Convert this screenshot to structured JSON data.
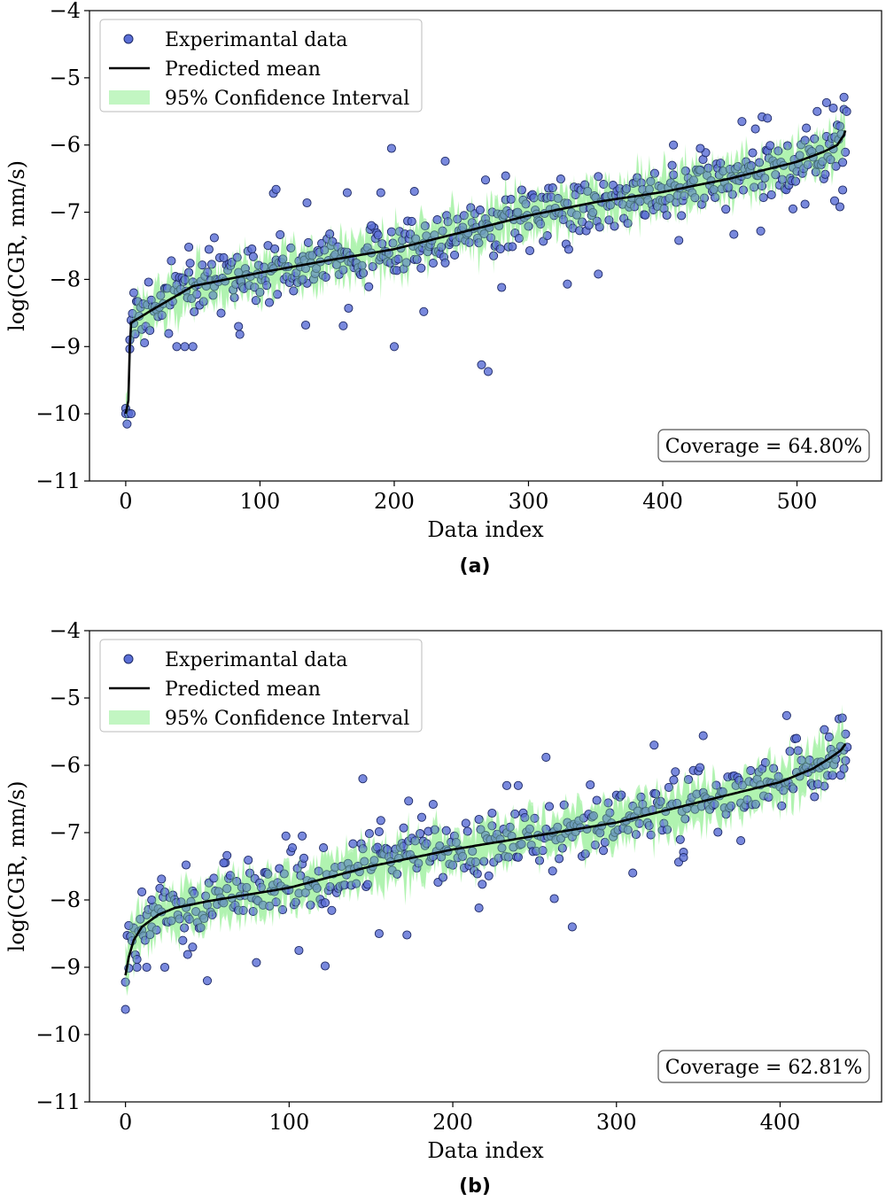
{
  "chart_data": [
    {
      "type": "scatter",
      "panel_label": "(a)",
      "xlabel": "Data index",
      "ylabel": "log(CGR, mm/s)",
      "xlim": [
        -27,
        563
      ],
      "ylim": [
        -11,
        -4
      ],
      "xticks": [
        0,
        100,
        200,
        300,
        400,
        500
      ],
      "xtick_labels": [
        "0",
        "100",
        "200",
        "300",
        "400",
        "500"
      ],
      "yticks": [
        -11,
        -10,
        -9,
        -8,
        -7,
        -6,
        -5,
        -4
      ],
      "ytick_labels": [
        "−11",
        "−10",
        "−9",
        "−8",
        "−7",
        "−6",
        "−5",
        "−4"
      ],
      "grid": false,
      "legend_position": "upper-left",
      "legend": [
        "Experimantal data",
        "Predicted mean",
        "95% Confidence Interval"
      ],
      "annotation": "Coverage = 64.80%",
      "n_points": 537,
      "mean_curve": {
        "x": [
          0,
          2,
          3,
          4,
          6,
          20,
          50,
          100,
          150,
          200,
          250,
          300,
          350,
          400,
          450,
          500,
          520,
          530,
          535,
          537
        ],
        "y": [
          -10.0,
          -9.8,
          -9.0,
          -8.65,
          -8.62,
          -8.45,
          -8.1,
          -7.9,
          -7.72,
          -7.55,
          -7.3,
          -7.05,
          -6.85,
          -6.7,
          -6.5,
          -6.25,
          -6.1,
          -6.0,
          -5.85,
          -5.72
        ]
      },
      "ci_halfwidth": 0.25,
      "ci_lower_min": -10.2,
      "scatter_sigma": 0.22,
      "outliers": [
        {
          "x": 0,
          "y": -10.0
        },
        {
          "x": 2,
          "y": -10.0
        },
        {
          "x": 4,
          "y": -10.0
        },
        {
          "x": 3,
          "y": -8.9
        },
        {
          "x": 6,
          "y": -8.2
        },
        {
          "x": 38,
          "y": -9.0
        },
        {
          "x": 44,
          "y": -9.0
        },
        {
          "x": 50,
          "y": -9.0
        },
        {
          "x": 47,
          "y": -7.52
        },
        {
          "x": 66,
          "y": -7.38
        },
        {
          "x": 85,
          "y": -8.82
        },
        {
          "x": 84,
          "y": -8.7
        },
        {
          "x": 110,
          "y": -6.72
        },
        {
          "x": 112,
          "y": -6.66
        },
        {
          "x": 132,
          "y": -8.0
        },
        {
          "x": 134,
          "y": -8.68
        },
        {
          "x": 135,
          "y": -6.86
        },
        {
          "x": 162,
          "y": -8.69
        },
        {
          "x": 165,
          "y": -6.71
        },
        {
          "x": 166,
          "y": -8.43
        },
        {
          "x": 183,
          "y": -7.2
        },
        {
          "x": 190,
          "y": -6.71
        },
        {
          "x": 198,
          "y": -6.05
        },
        {
          "x": 200,
          "y": -9.0
        },
        {
          "x": 215,
          "y": -6.69
        },
        {
          "x": 222,
          "y": -8.48
        },
        {
          "x": 238,
          "y": -6.24
        },
        {
          "x": 265,
          "y": -9.27
        },
        {
          "x": 270,
          "y": -9.37
        },
        {
          "x": 268,
          "y": -6.52
        },
        {
          "x": 280,
          "y": -8.12
        },
        {
          "x": 283,
          "y": -6.46
        },
        {
          "x": 314,
          "y": -7.35
        },
        {
          "x": 329,
          "y": -8.07
        },
        {
          "x": 352,
          "y": -7.92
        },
        {
          "x": 408,
          "y": -6.0
        },
        {
          "x": 412,
          "y": -7.42
        },
        {
          "x": 428,
          "y": -6.05
        },
        {
          "x": 453,
          "y": -7.33
        },
        {
          "x": 459,
          "y": -5.65
        },
        {
          "x": 474,
          "y": -5.58
        },
        {
          "x": 478,
          "y": -5.6
        },
        {
          "x": 473,
          "y": -7.28
        },
        {
          "x": 497,
          "y": -6.95
        },
        {
          "x": 506,
          "y": -6.88
        },
        {
          "x": 515,
          "y": -5.5
        },
        {
          "x": 522,
          "y": -5.37
        },
        {
          "x": 527,
          "y": -5.45
        },
        {
          "x": 532,
          "y": -6.92
        },
        {
          "x": 534,
          "y": -6.67
        },
        {
          "x": 535,
          "y": -5.47
        },
        {
          "x": 537,
          "y": -5.5
        },
        {
          "x": 528,
          "y": -6.83
        }
      ],
      "colors": {
        "points": "#5b6fd6",
        "points_edge": "#1e2a66",
        "ci": "#90ee90",
        "mean": "#000000"
      }
    },
    {
      "type": "scatter",
      "panel_label": "(b)",
      "xlabel": "Data index",
      "ylabel": "log(CGR, mm/s)",
      "xlim": [
        -22,
        462
      ],
      "ylim": [
        -11,
        -4
      ],
      "xticks": [
        0,
        100,
        200,
        300,
        400
      ],
      "xtick_labels": [
        "0",
        "100",
        "200",
        "300",
        "400"
      ],
      "yticks": [
        -11,
        -10,
        -9,
        -8,
        -7,
        -6,
        -5,
        -4
      ],
      "ytick_labels": [
        "−11",
        "−10",
        "−9",
        "−8",
        "−7",
        "−6",
        "−5",
        "−4"
      ],
      "grid": false,
      "legend_position": "upper-left",
      "legend": [
        "Experimantal data",
        "Predicted mean",
        "95% Confidence Interval"
      ],
      "annotation": "Coverage = 62.81%",
      "n_points": 441,
      "mean_curve": {
        "x": [
          0,
          2,
          5,
          10,
          20,
          30,
          50,
          100,
          150,
          200,
          250,
          300,
          350,
          400,
          420,
          430,
          437,
          441
        ],
        "y": [
          -9.12,
          -8.85,
          -8.6,
          -8.4,
          -8.22,
          -8.12,
          -8.02,
          -7.82,
          -7.5,
          -7.25,
          -7.05,
          -6.85,
          -6.55,
          -6.25,
          -6.05,
          -5.9,
          -5.78,
          -5.65
        ]
      },
      "ci_halfwidth": 0.26,
      "ci_lower_min": -9.85,
      "scatter_sigma": 0.24,
      "outliers": [
        {
          "x": 0,
          "y": -9.22
        },
        {
          "x": 2,
          "y": -8.38
        },
        {
          "x": 7,
          "y": -9.0
        },
        {
          "x": 10,
          "y": -7.88
        },
        {
          "x": 13,
          "y": -9.0
        },
        {
          "x": 16,
          "y": -8.0
        },
        {
          "x": 24,
          "y": -9.0
        },
        {
          "x": 22,
          "y": -7.69
        },
        {
          "x": 37,
          "y": -7.48
        },
        {
          "x": 38,
          "y": -8.81
        },
        {
          "x": 41,
          "y": -8.7
        },
        {
          "x": 50,
          "y": -9.2
        },
        {
          "x": 60,
          "y": -7.45
        },
        {
          "x": 62,
          "y": -7.34
        },
        {
          "x": 80,
          "y": -8.93
        },
        {
          "x": 98,
          "y": -7.05
        },
        {
          "x": 106,
          "y": -8.75
        },
        {
          "x": 108,
          "y": -7.05
        },
        {
          "x": 122,
          "y": -8.98
        },
        {
          "x": 145,
          "y": -6.2
        },
        {
          "x": 155,
          "y": -8.5
        },
        {
          "x": 156,
          "y": -6.82
        },
        {
          "x": 170,
          "y": -6.93
        },
        {
          "x": 172,
          "y": -8.52
        },
        {
          "x": 173,
          "y": -6.53
        },
        {
          "x": 188,
          "y": -6.58
        },
        {
          "x": 196,
          "y": -6.97
        },
        {
          "x": 216,
          "y": -8.12
        },
        {
          "x": 224,
          "y": -6.71
        },
        {
          "x": 233,
          "y": -6.3
        },
        {
          "x": 240,
          "y": -6.3
        },
        {
          "x": 257,
          "y": -5.88
        },
        {
          "x": 261,
          "y": -7.57
        },
        {
          "x": 262,
          "y": -7.98
        },
        {
          "x": 273,
          "y": -8.4
        },
        {
          "x": 288,
          "y": -6.52
        },
        {
          "x": 310,
          "y": -7.6
        },
        {
          "x": 323,
          "y": -5.7
        },
        {
          "x": 341,
          "y": -7.37
        },
        {
          "x": 353,
          "y": -5.56
        },
        {
          "x": 376,
          "y": -7.12
        },
        {
          "x": 410,
          "y": -5.6
        },
        {
          "x": 420,
          "y": -6.3
        },
        {
          "x": 423,
          "y": -6.28
        },
        {
          "x": 427,
          "y": -5.47
        },
        {
          "x": 430,
          "y": -5.58
        },
        {
          "x": 432,
          "y": -5.84
        },
        {
          "x": 437,
          "y": -5.72
        },
        {
          "x": 440,
          "y": -5.93
        },
        {
          "x": 441,
          "y": -5.73
        },
        {
          "x": 439,
          "y": -6.05
        }
      ],
      "colors": {
        "points": "#5b6fd6",
        "points_edge": "#1e2a66",
        "ci": "#90ee90",
        "mean": "#000000"
      }
    }
  ]
}
